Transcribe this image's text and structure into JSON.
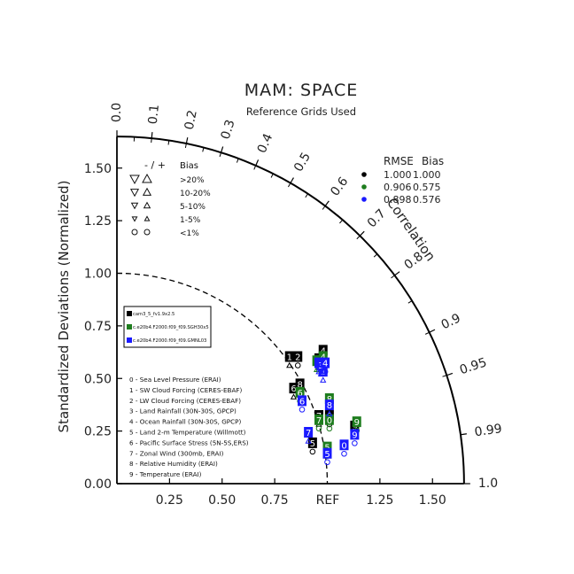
{
  "chart_data": {
    "type": "scatter",
    "subtype": "taylor-diagram",
    "title": "MAM: SPACE",
    "subtitle": "Reference Grids Used",
    "ylabel": "Standardized Deviations (Normalized)",
    "correlation_label": "Correlation",
    "ref_label": "REF",
    "std_range": [
      0,
      1.65
    ],
    "x_ticks": [
      0.25,
      0.5,
      0.75,
      1.25,
      1.5
    ],
    "x_tick_labels": [
      "0.25",
      "0.50",
      "0.75",
      "1.25",
      "1.50"
    ],
    "y_ticks": [
      0,
      0.25,
      0.5,
      0.75,
      1.0,
      1.25,
      1.5
    ],
    "y_tick_labels": [
      "0.00",
      "0.25",
      "0.50",
      "0.75",
      "1.00",
      "1.25",
      "1.50"
    ],
    "corr_ticks": [
      0.0,
      0.1,
      0.2,
      0.3,
      0.4,
      0.5,
      0.6,
      0.7,
      0.8,
      0.9,
      0.95,
      0.99,
      1.0
    ],
    "corr_tick_labels": [
      "0.0",
      "0.1",
      "0.2",
      "0.3",
      "0.4",
      "0.5",
      "0.6",
      "0.7",
      "0.8",
      "0.9",
      "0.95",
      "0.99",
      "1.0"
    ],
    "bias_legend": {
      "header_minus_plus": "- / +",
      "header_bias": "Bias",
      "rows": [
        {
          "label": ">20%",
          "size": 5
        },
        {
          "label": "10-20%",
          "size": 4.2
        },
        {
          "label": "5-10%",
          "size": 3.4
        },
        {
          "label": "1-5%",
          "size": 2.6
        },
        {
          "label": "<1%",
          "size": 0
        }
      ]
    },
    "rmse_table": {
      "header_rmse": "RMSE",
      "header_bias": "Bias",
      "rows": [
        {
          "color": "#000000",
          "rmse": "1.000",
          "bias": "1.000"
        },
        {
          "color": "#1e7d1e",
          "rmse": "0.906",
          "bias": "0.575"
        },
        {
          "color": "#1a1aff",
          "rmse": "0.898",
          "bias": "0.576"
        }
      ]
    },
    "case_legend": [
      {
        "name": "cam3_5_fv1.9x2.5",
        "color": "#000000"
      },
      {
        "name": "c.e20b4.F2000.f09_f09.SGH30x5",
        "color": "#1e7d1e"
      },
      {
        "name": "c.e20b4.F2000.f09_f09.GMNL03",
        "color": "#1a1aff"
      }
    ],
    "variables": [
      "0 - Sea Level Pressure (ERAI)",
      "1 - SW Cloud Forcing (CERES-EBAF)",
      "2 - LW Cloud Forcing (CERES-EBAF)",
      "3 - Land Rainfall (30N-30S, GPCP)",
      "4 - Ocean Rainfall (30N-30S, GPCP)",
      "5 - Land 2-m Temperature (Willmott)",
      "6 - Pacific Surface Stress (5N-5S,ERS)",
      "7 - Zonal Wind (300mb, ERAI)",
      "8 - Relative Humidity (ERAI)",
      "9 - Temperature (ERAI)"
    ],
    "series": [
      {
        "name": "cam3_5_fv1.9x2.5",
        "color": "#000000",
        "points": [
          {
            "id": "0",
            "x": 1.01,
            "y": 0.32,
            "marker": "o"
          },
          {
            "id": "1",
            "x": 0.82,
            "y": 0.6,
            "marker": "up"
          },
          {
            "id": "2",
            "x": 0.86,
            "y": 0.6,
            "marker": "o"
          },
          {
            "id": "3",
            "x": 0.96,
            "y": 0.59,
            "marker": "o"
          },
          {
            "id": "4",
            "x": 0.98,
            "y": 0.63,
            "marker": "o"
          },
          {
            "id": "5",
            "x": 0.93,
            "y": 0.19,
            "marker": "o"
          },
          {
            "id": "6",
            "x": 0.84,
            "y": 0.45,
            "marker": "up"
          },
          {
            "id": "7",
            "x": 0.96,
            "y": 0.32,
            "marker": "up"
          },
          {
            "id": "8",
            "x": 0.87,
            "y": 0.47,
            "marker": "up"
          },
          {
            "id": "9",
            "x": 1.13,
            "y": 0.27,
            "marker": "o"
          }
        ]
      },
      {
        "name": "c.e20b4.F2000.f09_f09.SGH30x5",
        "color": "#1e7d1e",
        "points": [
          {
            "id": "0",
            "x": 1.01,
            "y": 0.3,
            "marker": "o"
          },
          {
            "id": "1",
            "x": 0.98,
            "y": 0.57,
            "marker": "up"
          },
          {
            "id": "2",
            "x": 0.95,
            "y": 0.58,
            "marker": "up"
          },
          {
            "id": "3",
            "x": 0.96,
            "y": 0.58,
            "marker": "o"
          },
          {
            "id": "4",
            "x": 0.98,
            "y": 0.6,
            "marker": "o"
          },
          {
            "id": "5",
            "x": 1.0,
            "y": 0.17,
            "marker": "o"
          },
          {
            "id": "6",
            "x": 0.87,
            "y": 0.43,
            "marker": "o"
          },
          {
            "id": "7",
            "x": 0.96,
            "y": 0.3,
            "marker": "o"
          },
          {
            "id": "8",
            "x": 1.01,
            "y": 0.4,
            "marker": "up"
          },
          {
            "id": "9",
            "x": 1.14,
            "y": 0.29,
            "marker": "o"
          }
        ]
      },
      {
        "name": "c.e20b4.F2000.f09_f09.GMNL03",
        "color": "#1a1aff",
        "points": [
          {
            "id": "0",
            "x": 1.08,
            "y": 0.18,
            "marker": "o"
          },
          {
            "id": "1",
            "x": 0.98,
            "y": 0.53,
            "marker": "up"
          },
          {
            "id": "2",
            "x": 0.96,
            "y": 0.57,
            "marker": "up"
          },
          {
            "id": "3",
            "x": 0.97,
            "y": 0.56,
            "marker": "up"
          },
          {
            "id": "4",
            "x": 0.99,
            "y": 0.57,
            "marker": "o"
          },
          {
            "id": "5",
            "x": 1.0,
            "y": 0.14,
            "marker": "o"
          },
          {
            "id": "6",
            "x": 0.88,
            "y": 0.39,
            "marker": "o"
          },
          {
            "id": "7",
            "x": 0.91,
            "y": 0.24,
            "marker": "up"
          },
          {
            "id": "8",
            "x": 1.01,
            "y": 0.37,
            "marker": "up"
          },
          {
            "id": "9",
            "x": 1.13,
            "y": 0.23,
            "marker": "o"
          }
        ]
      }
    ]
  }
}
